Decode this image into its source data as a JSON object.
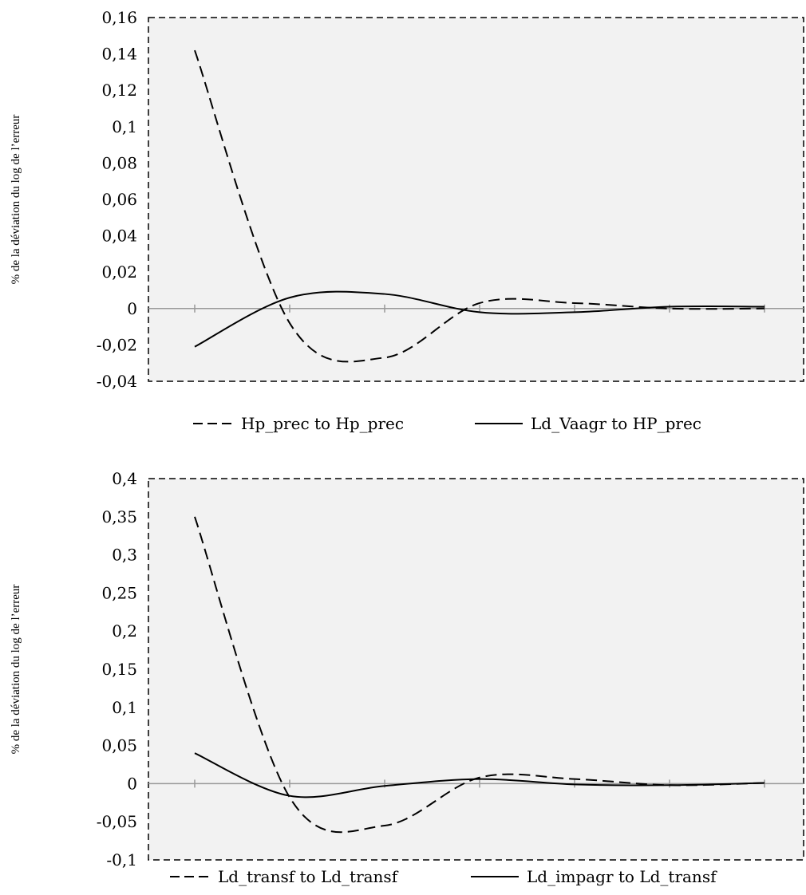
{
  "chart_data": [
    {
      "type": "line",
      "title": "",
      "xlabel": "",
      "ylabel": "% de la déviation du log de l’erreur",
      "ylim": [
        -0.04,
        0.16
      ],
      "yticks": [
        "0,16",
        "0,14",
        "0,12",
        "0,1",
        "0,08",
        "0,06",
        "0,04",
        "0,02",
        "0",
        "-0,02",
        "-0,04"
      ],
      "x": [
        1,
        2,
        3,
        4,
        5,
        6,
        7
      ],
      "grid": false,
      "legend_position": "bottom",
      "series": [
        {
          "name": "Hp_prec to Hp_prec",
          "style": "dashed",
          "values": [
            0.142,
            -0.008,
            -0.027,
            0.003,
            0.003,
            0.0,
            0.0
          ]
        },
        {
          "name": "Ld_Vaagr to HP_prec",
          "style": "solid",
          "values": [
            -0.021,
            0.006,
            0.008,
            -0.002,
            -0.002,
            0.001,
            0.001
          ]
        }
      ]
    },
    {
      "type": "line",
      "title": "",
      "xlabel": "",
      "ylabel": "% de la déviation du log de l’erreur",
      "ylim": [
        -0.1,
        0.4
      ],
      "yticks": [
        "0,4",
        "0,35",
        "0,3",
        "0,25",
        "0,2",
        "0,15",
        "0,1",
        "0,05",
        "0",
        "-0,05",
        "-0,1"
      ],
      "x": [
        1,
        2,
        3,
        4,
        5,
        6,
        7
      ],
      "grid": false,
      "legend_position": "bottom",
      "series": [
        {
          "name": "Ld_transf to Ld_transf",
          "style": "dashed",
          "values": [
            0.35,
            -0.018,
            -0.055,
            0.008,
            0.006,
            -0.002,
            0.001
          ]
        },
        {
          "name": "Ld_impagr to Ld_transf",
          "style": "solid",
          "values": [
            0.04,
            -0.016,
            -0.003,
            0.006,
            -0.001,
            -0.002,
            0.001
          ]
        }
      ]
    }
  ],
  "colors": {
    "plot_background": "#f2f2f2",
    "line": "#000000",
    "zero_line": "#999999"
  }
}
